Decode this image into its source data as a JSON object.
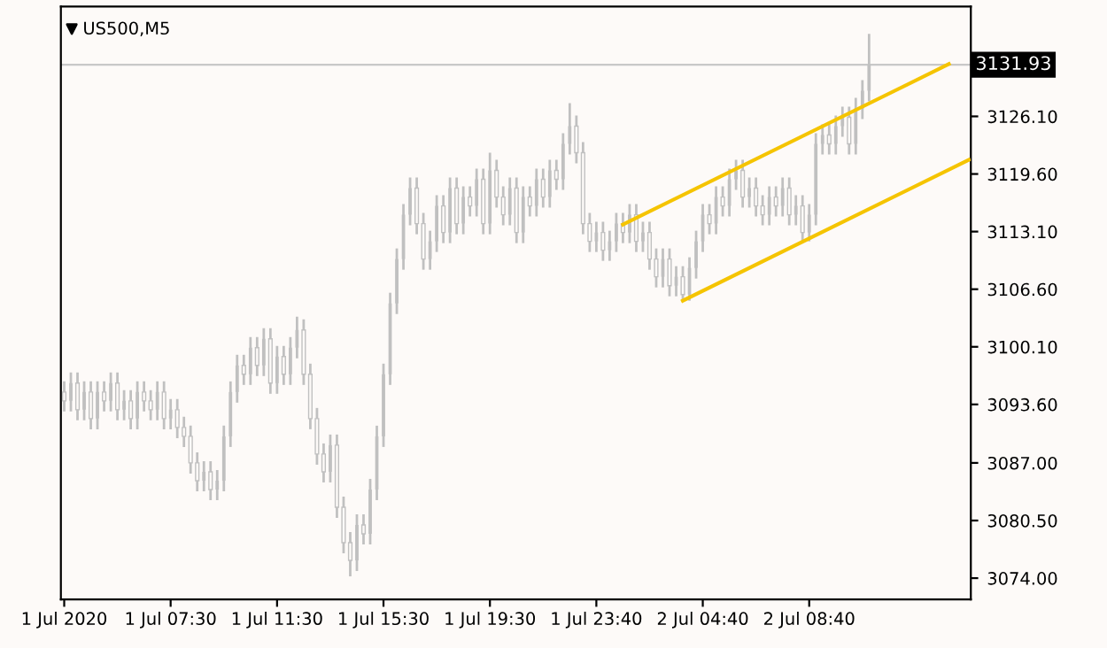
{
  "chart_data": {
    "type": "candlestick",
    "title": "US500,M5",
    "categories": [
      "1 Jul 2020",
      null,
      null,
      null,
      null,
      null,
      null,
      null,
      null,
      null,
      null,
      null,
      null,
      null,
      null,
      null,
      "1 Jul 07:30",
      null,
      null,
      null,
      null,
      null,
      null,
      null,
      null,
      null,
      null,
      null,
      null,
      null,
      null,
      null,
      "1 Jul 11:30",
      null,
      null,
      null,
      null,
      null,
      null,
      null,
      null,
      null,
      null,
      null,
      null,
      null,
      null,
      null,
      "1 Jul 15:30",
      null,
      null,
      null,
      null,
      null,
      null,
      null,
      null,
      null,
      null,
      null,
      null,
      null,
      null,
      null,
      "1 Jul 19:30",
      null,
      null,
      null,
      null,
      null,
      null,
      null,
      null,
      null,
      null,
      null,
      null,
      null,
      null,
      null,
      "1 Jul 23:40",
      null,
      null,
      null,
      null,
      null,
      null,
      null,
      null,
      null,
      null,
      null,
      null,
      null,
      null,
      null,
      "2 Jul 04:40",
      null,
      null,
      null,
      null,
      null,
      null,
      null,
      null,
      null,
      null,
      null,
      null,
      null,
      null,
      null,
      "2 Jul 08:40",
      null,
      null,
      null,
      null,
      null,
      null,
      null,
      null,
      null,
      null,
      null,
      null,
      null,
      null,
      null,
      null,
      null,
      null,
      null,
      null,
      null,
      null,
      null,
      null
    ],
    "ohlc": [
      [
        3095,
        3096.2,
        3092.8,
        3094
      ],
      [
        3094,
        3097.2,
        3092.8,
        3096
      ],
      [
        3096,
        3097.2,
        3091.8,
        3093
      ],
      [
        3093,
        3096.2,
        3091.8,
        3095
      ],
      [
        3095,
        3096.2,
        3090.8,
        3092
      ],
      [
        3092,
        3096.2,
        3090.8,
        3095
      ],
      [
        3095,
        3096.2,
        3092.8,
        3094
      ],
      [
        3094,
        3097.2,
        3092.8,
        3096
      ],
      [
        3096,
        3097.2,
        3091.8,
        3093
      ],
      [
        3093,
        3095.2,
        3091.8,
        3094
      ],
      [
        3094,
        3095.2,
        3090.8,
        3092
      ],
      [
        3092,
        3096.2,
        3090.8,
        3095
      ],
      [
        3095,
        3096.2,
        3092.8,
        3094
      ],
      [
        3094,
        3095.2,
        3091.8,
        3093
      ],
      [
        3093,
        3096.2,
        3091.8,
        3095
      ],
      [
        3095,
        3096.2,
        3090.8,
        3092
      ],
      [
        3092,
        3094.2,
        3090.8,
        3093
      ],
      [
        3093,
        3094.2,
        3089.8,
        3091
      ],
      [
        3091,
        3092.2,
        3088.8,
        3090
      ],
      [
        3090,
        3091.2,
        3085.8,
        3087
      ],
      [
        3087,
        3088.2,
        3083.8,
        3085
      ],
      [
        3085,
        3087.2,
        3083.8,
        3086
      ],
      [
        3086,
        3087.2,
        3082.8,
        3084
      ],
      [
        3084,
        3086.2,
        3082.8,
        3085
      ],
      [
        3085,
        3091.2,
        3083.8,
        3090
      ],
      [
        3090,
        3096.2,
        3088.8,
        3095
      ],
      [
        3095,
        3099.2,
        3093.8,
        3098
      ],
      [
        3098,
        3099.2,
        3095.8,
        3097
      ],
      [
        3097,
        3101.2,
        3095.8,
        3100
      ],
      [
        3100,
        3101.2,
        3096.8,
        3098
      ],
      [
        3098,
        3102.2,
        3096.8,
        3101
      ],
      [
        3101,
        3102.2,
        3094.8,
        3096
      ],
      [
        3096,
        3100.2,
        3094.8,
        3099
      ],
      [
        3099,
        3100.2,
        3095.8,
        3097
      ],
      [
        3097,
        3101.2,
        3095.8,
        3100
      ],
      [
        3100,
        3103.5,
        3098.8,
        3102
      ],
      [
        3102,
        3103.2,
        3095.8,
        3097
      ],
      [
        3097,
        3098.2,
        3090.8,
        3092
      ],
      [
        3092,
        3093.2,
        3086.8,
        3088
      ],
      [
        3088,
        3089.2,
        3084.8,
        3086
      ],
      [
        3086,
        3090.2,
        3084.8,
        3089
      ],
      [
        3089,
        3090.2,
        3080.8,
        3082
      ],
      [
        3082,
        3083.2,
        3076.8,
        3078
      ],
      [
        3078,
        3079.2,
        3074.2,
        3076
      ],
      [
        3076,
        3081.2,
        3074.8,
        3080
      ],
      [
        3080,
        3081.2,
        3077.8,
        3079
      ],
      [
        3079,
        3085.2,
        3077.8,
        3084
      ],
      [
        3084,
        3091.2,
        3082.8,
        3090
      ],
      [
        3090,
        3098.2,
        3088.8,
        3097
      ],
      [
        3097,
        3106.2,
        3095.8,
        3105
      ],
      [
        3105,
        3111.2,
        3103.8,
        3110
      ],
      [
        3110,
        3116.2,
        3108.8,
        3115
      ],
      [
        3115,
        3119.2,
        3113.8,
        3118
      ],
      [
        3118,
        3119.2,
        3112.8,
        3114
      ],
      [
        3114,
        3115.2,
        3108.8,
        3110
      ],
      [
        3110,
        3113.2,
        3108.8,
        3112
      ],
      [
        3112,
        3117.2,
        3110.8,
        3116
      ],
      [
        3116,
        3117.2,
        3111.8,
        3113
      ],
      [
        3113,
        3119.2,
        3111.8,
        3118
      ],
      [
        3118,
        3119.2,
        3112.8,
        3114
      ],
      [
        3114,
        3118.2,
        3112.8,
        3117
      ],
      [
        3117,
        3118.2,
        3114.8,
        3116
      ],
      [
        3116,
        3120.2,
        3114.8,
        3119
      ],
      [
        3119,
        3120.2,
        3112.8,
        3114
      ],
      [
        3114,
        3122,
        3112.8,
        3120
      ],
      [
        3120,
        3121.2,
        3115.8,
        3117
      ],
      [
        3117,
        3118.2,
        3113.8,
        3115
      ],
      [
        3115,
        3119.2,
        3113.8,
        3118
      ],
      [
        3118,
        3119.2,
        3111.8,
        3113
      ],
      [
        3113,
        3118.2,
        3111.8,
        3117
      ],
      [
        3117,
        3118.2,
        3114.8,
        3116
      ],
      [
        3116,
        3120.2,
        3114.8,
        3119
      ],
      [
        3119,
        3120.2,
        3115.8,
        3117
      ],
      [
        3117,
        3121.2,
        3115.8,
        3120
      ],
      [
        3120,
        3121.2,
        3117.8,
        3119
      ],
      [
        3119,
        3124.2,
        3117.8,
        3123
      ],
      [
        3123,
        3127.6,
        3121.8,
        3125
      ],
      [
        3125,
        3126.2,
        3120.8,
        3122
      ],
      [
        3122,
        3123.2,
        3112.8,
        3114
      ],
      [
        3114,
        3115.2,
        3110.8,
        3112
      ],
      [
        3112,
        3114.2,
        3110.8,
        3113
      ],
      [
        3113,
        3114.2,
        3109.8,
        3111
      ],
      [
        3111,
        3113.2,
        3109.8,
        3112
      ],
      [
        3112,
        3115.2,
        3110.8,
        3114
      ],
      [
        3114,
        3115.2,
        3111.8,
        3113
      ],
      [
        3113,
        3116.2,
        3111.8,
        3115
      ],
      [
        3115,
        3116.2,
        3110.8,
        3112
      ],
      [
        3112,
        3114.2,
        3110.8,
        3113
      ],
      [
        3113,
        3114.2,
        3108.8,
        3110
      ],
      [
        3110,
        3111.2,
        3106.8,
        3108
      ],
      [
        3108,
        3111.2,
        3106.8,
        3110
      ],
      [
        3110,
        3111.2,
        3105.8,
        3107
      ],
      [
        3107,
        3109.2,
        3105.8,
        3108
      ],
      [
        3108,
        3109.2,
        3105.3,
        3106
      ],
      [
        3106,
        3110.2,
        3105.3,
        3109
      ],
      [
        3109,
        3113.2,
        3107.8,
        3112
      ],
      [
        3112,
        3116.2,
        3110.8,
        3115
      ],
      [
        3115,
        3116.2,
        3112.8,
        3114
      ],
      [
        3114,
        3118.2,
        3112.8,
        3117
      ],
      [
        3117,
        3118.2,
        3114.8,
        3116
      ],
      [
        3116,
        3120.2,
        3114.8,
        3119
      ],
      [
        3119,
        3121.2,
        3117.8,
        3120
      ],
      [
        3120,
        3121.2,
        3115.8,
        3117
      ],
      [
        3117,
        3119.2,
        3115.8,
        3118
      ],
      [
        3118,
        3119.2,
        3114.8,
        3116
      ],
      [
        3116,
        3117.2,
        3113.8,
        3115
      ],
      [
        3115,
        3118.2,
        3113.8,
        3117
      ],
      [
        3117,
        3118.2,
        3114.8,
        3116
      ],
      [
        3116,
        3119.2,
        3114.8,
        3118
      ],
      [
        3118,
        3119.2,
        3113.8,
        3115
      ],
      [
        3115,
        3117.2,
        3113.8,
        3116
      ],
      [
        3116,
        3117.2,
        3112,
        3113
      ],
      [
        3113,
        3116.2,
        3112,
        3115
      ],
      [
        3115,
        3124.2,
        3113.8,
        3123
      ],
      [
        3123,
        3125.2,
        3121.8,
        3124
      ],
      [
        3124,
        3125.2,
        3121.8,
        3123
      ],
      [
        3123,
        3126.2,
        3121.8,
        3125
      ],
      [
        3125,
        3127.2,
        3123.8,
        3126
      ],
      [
        3126,
        3127.2,
        3121.8,
        3123
      ],
      [
        3123,
        3128.2,
        3121.8,
        3127
      ],
      [
        3127,
        3130.2,
        3125.8,
        3129
      ],
      [
        3129,
        3135.4,
        3127.8,
        3131.93
      ],
      null,
      null,
      null,
      null,
      null,
      null,
      null,
      null,
      null,
      null,
      null,
      null,
      null,
      null,
      null
    ],
    "color": "#c0c0c0",
    "series": [
      {
        "type": "line",
        "color": "#f5c400",
        "values": [
          null,
          null,
          null,
          null,
          null,
          null,
          null,
          null,
          null,
          null,
          null,
          null,
          null,
          null,
          null,
          null,
          null,
          null,
          null,
          null,
          null,
          null,
          null,
          null,
          null,
          null,
          null,
          null,
          null,
          null,
          null,
          null,
          null,
          null,
          null,
          null,
          null,
          null,
          null,
          null,
          null,
          null,
          null,
          null,
          null,
          null,
          null,
          null,
          null,
          null,
          null,
          null,
          null,
          null,
          null,
          null,
          null,
          null,
          null,
          null,
          null,
          null,
          null,
          null,
          null,
          null,
          null,
          null,
          null,
          null,
          null,
          null,
          null,
          null,
          null,
          null,
          null,
          null,
          null,
          null,
          null,
          null,
          null,
          null,
          3113.9,
          null,
          null,
          null,
          null,
          null,
          null,
          null,
          null,
          null,
          null,
          null,
          null,
          null,
          null,
          null,
          null,
          null,
          null,
          null,
          null,
          null,
          null,
          null,
          null,
          null,
          null,
          null,
          null,
          null,
          null,
          null,
          null,
          null,
          null,
          null,
          null,
          null,
          null,
          null,
          null,
          null,
          null,
          null,
          null,
          null,
          null,
          null,
          null,
          3132.0,
          null,
          null,
          null
        ]
      },
      {
        "type": "line",
        "color": "#f5c400",
        "values": [
          null,
          null,
          null,
          null,
          null,
          null,
          null,
          null,
          null,
          null,
          null,
          null,
          null,
          null,
          null,
          null,
          null,
          null,
          null,
          null,
          null,
          null,
          null,
          null,
          null,
          null,
          null,
          null,
          null,
          null,
          null,
          null,
          null,
          null,
          null,
          null,
          null,
          null,
          null,
          null,
          null,
          null,
          null,
          null,
          null,
          null,
          null,
          null,
          null,
          null,
          null,
          null,
          null,
          null,
          null,
          null,
          null,
          null,
          null,
          null,
          null,
          null,
          null,
          null,
          null,
          null,
          null,
          null,
          null,
          null,
          null,
          null,
          null,
          null,
          null,
          null,
          null,
          null,
          null,
          null,
          null,
          null,
          null,
          null,
          null,
          null,
          null,
          null,
          null,
          null,
          null,
          null,
          null,
          3105.3,
          null,
          null,
          null,
          null,
          null,
          null,
          null,
          null,
          null,
          null,
          null,
          null,
          null,
          null,
          null,
          null,
          null,
          null,
          null,
          null,
          null,
          null,
          null,
          null,
          null,
          null,
          null,
          null,
          null,
          null,
          null,
          null,
          null,
          null,
          null,
          null,
          null,
          null,
          null,
          null,
          null,
          null,
          3121.2
        ]
      }
    ],
    "ylim": [
      3071.6,
      3138.5
    ],
    "yticks": [
      {
        "value": 3074.0,
        "label": "3074.00"
      },
      {
        "value": 3080.5,
        "label": "3080.50"
      },
      {
        "value": 3087.0,
        "label": "3087.00"
      },
      {
        "value": 3093.6,
        "label": "3093.60"
      },
      {
        "value": 3100.1,
        "label": "3100.10"
      },
      {
        "value": 3106.6,
        "label": "3106.60"
      },
      {
        "value": 3113.1,
        "label": "3113.10"
      },
      {
        "value": 3119.6,
        "label": "3119.60"
      },
      {
        "value": 3126.1,
        "label": "3126.10"
      },
      {
        "value": 3132.6,
        "label": null
      }
    ],
    "ref_lines": [
      {
        "axis": "y",
        "value": 3131.93,
        "label": "3131.93",
        "color": "#c8c8c8"
      }
    ],
    "grid": false,
    "legend": false
  }
}
